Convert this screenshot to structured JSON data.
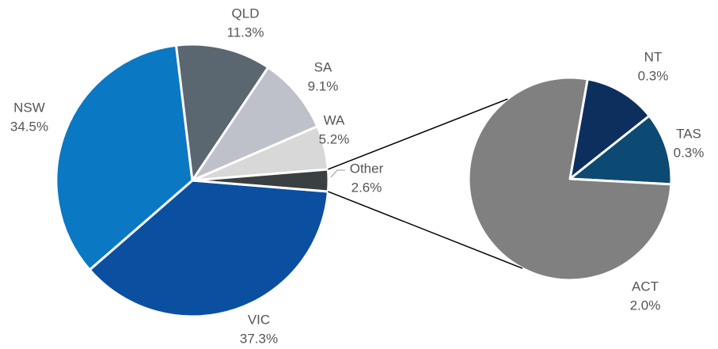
{
  "chart_data": {
    "type": "pie-of-pie",
    "categories": [
      "VIC",
      "NSW",
      "QLD",
      "SA",
      "WA",
      "Other"
    ],
    "values": [
      37.3,
      34.5,
      11.3,
      9.1,
      5.2,
      2.6
    ],
    "value_labels": [
      "37.3%",
      "34.5%",
      "11.3%",
      "9.1%",
      "5.2%",
      "2.6%"
    ],
    "colors": [
      "#0b4fa1",
      "#0b78c4",
      "#5a6670",
      "#bec0ca",
      "#d8d8d8",
      "#3a3f42"
    ],
    "breakout": {
      "categories": [
        "NT",
        "TAS",
        "ACT"
      ],
      "values": [
        0.3,
        0.3,
        2.0
      ],
      "value_labels": [
        "0.3%",
        "0.3%",
        "2.0%"
      ],
      "colors": [
        "#0c2f5e",
        "#0c4a74",
        "#808080"
      ]
    }
  }
}
